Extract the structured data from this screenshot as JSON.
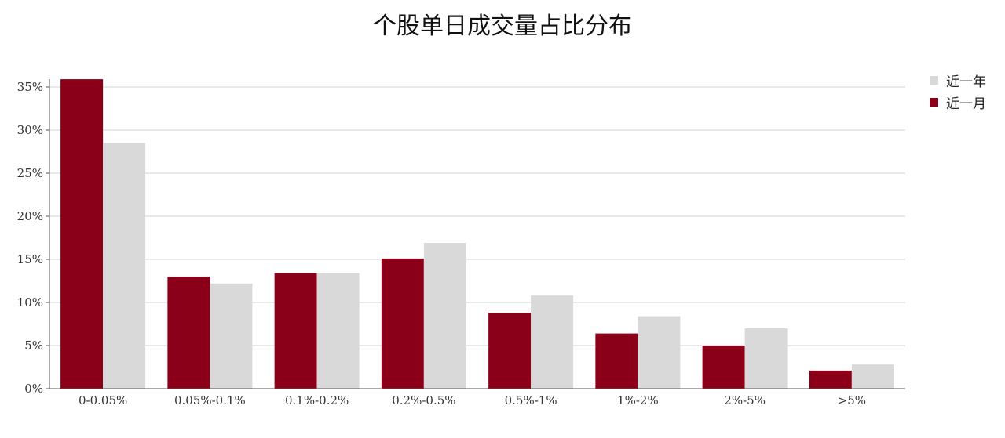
{
  "chart_data": {
    "type": "bar",
    "title": "个股单日成交量占比分布",
    "categories": [
      "0-0.05%",
      "0.05%-0.1%",
      "0.1%-0.2%",
      "0.2%-0.5%",
      "0.5%-1%",
      "1%-2%",
      "2%-5%",
      ">5%"
    ],
    "series": [
      {
        "name": "近一月",
        "color": "#8b0018",
        "values": [
          35.9,
          13.0,
          13.4,
          15.1,
          8.8,
          6.4,
          5.0,
          2.1
        ]
      },
      {
        "name": "近一年",
        "color": "#d9d9d9",
        "values": [
          28.5,
          12.2,
          13.4,
          16.9,
          10.8,
          8.4,
          7.0,
          2.8
        ]
      }
    ],
    "legend_order": [
      "近一年",
      "近一月"
    ],
    "ylim": [
      0,
      35
    ],
    "yticks": [
      0,
      5,
      10,
      15,
      20,
      25,
      30,
      35
    ],
    "ytick_labels": [
      "0%",
      "5%",
      "10%",
      "15%",
      "20%",
      "25%",
      "30%",
      "35%"
    ],
    "grid": true,
    "legend_position": "top-right"
  }
}
